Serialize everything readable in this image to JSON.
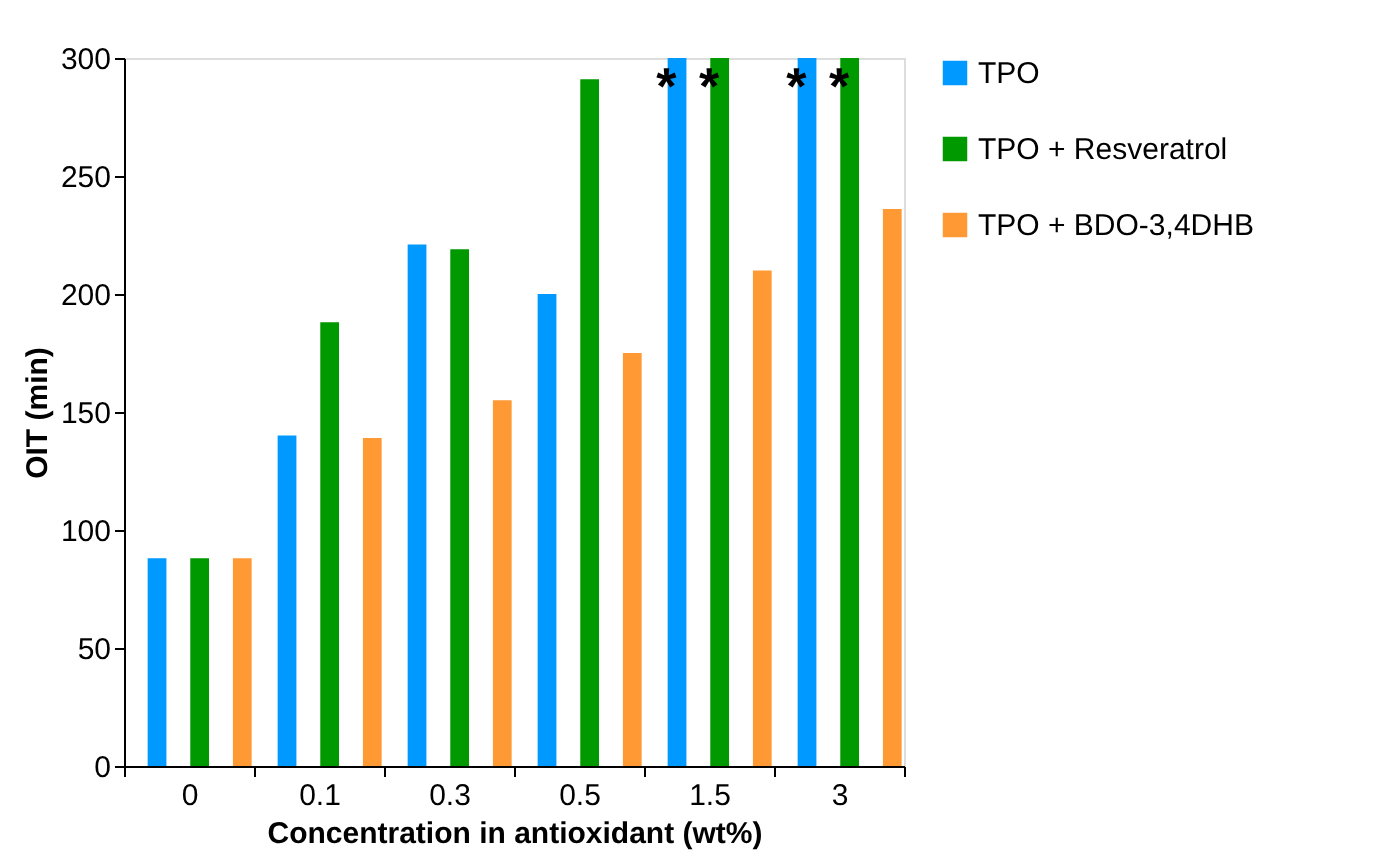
{
  "chart_data": {
    "type": "bar",
    "xlabel": "Concentration in antioxidant (wt%)",
    "ylabel": "OIT (min)",
    "categories": [
      "0",
      "0.1",
      "0.3",
      "0.5",
      "1.5",
      "3"
    ],
    "series": [
      {
        "name": "TPO",
        "color": "#0099ff",
        "values": [
          88,
          140,
          221,
          200,
          300,
          300
        ]
      },
      {
        "name": "TPO + Resveratrol",
        "color": "#009900",
        "values": [
          88,
          188,
          219,
          291,
          300,
          300
        ]
      },
      {
        "name": "TPO + BDO-3,4DHB",
        "color": "#ff9933",
        "values": [
          88,
          139,
          155,
          175,
          210,
          236
        ]
      }
    ],
    "ylim": [
      0,
      300
    ],
    "yticks": [
      0,
      50,
      100,
      150,
      200,
      250,
      300
    ],
    "grid": false,
    "legend": "right",
    "annotations": [
      {
        "text": "*",
        "x": "1.5",
        "y": 300
      },
      {
        "text": "*",
        "x": "1.5",
        "y": 300
      },
      {
        "text": "*",
        "x": "3",
        "y": 300
      },
      {
        "text": "*",
        "x": "3",
        "y": 300
      }
    ]
  }
}
